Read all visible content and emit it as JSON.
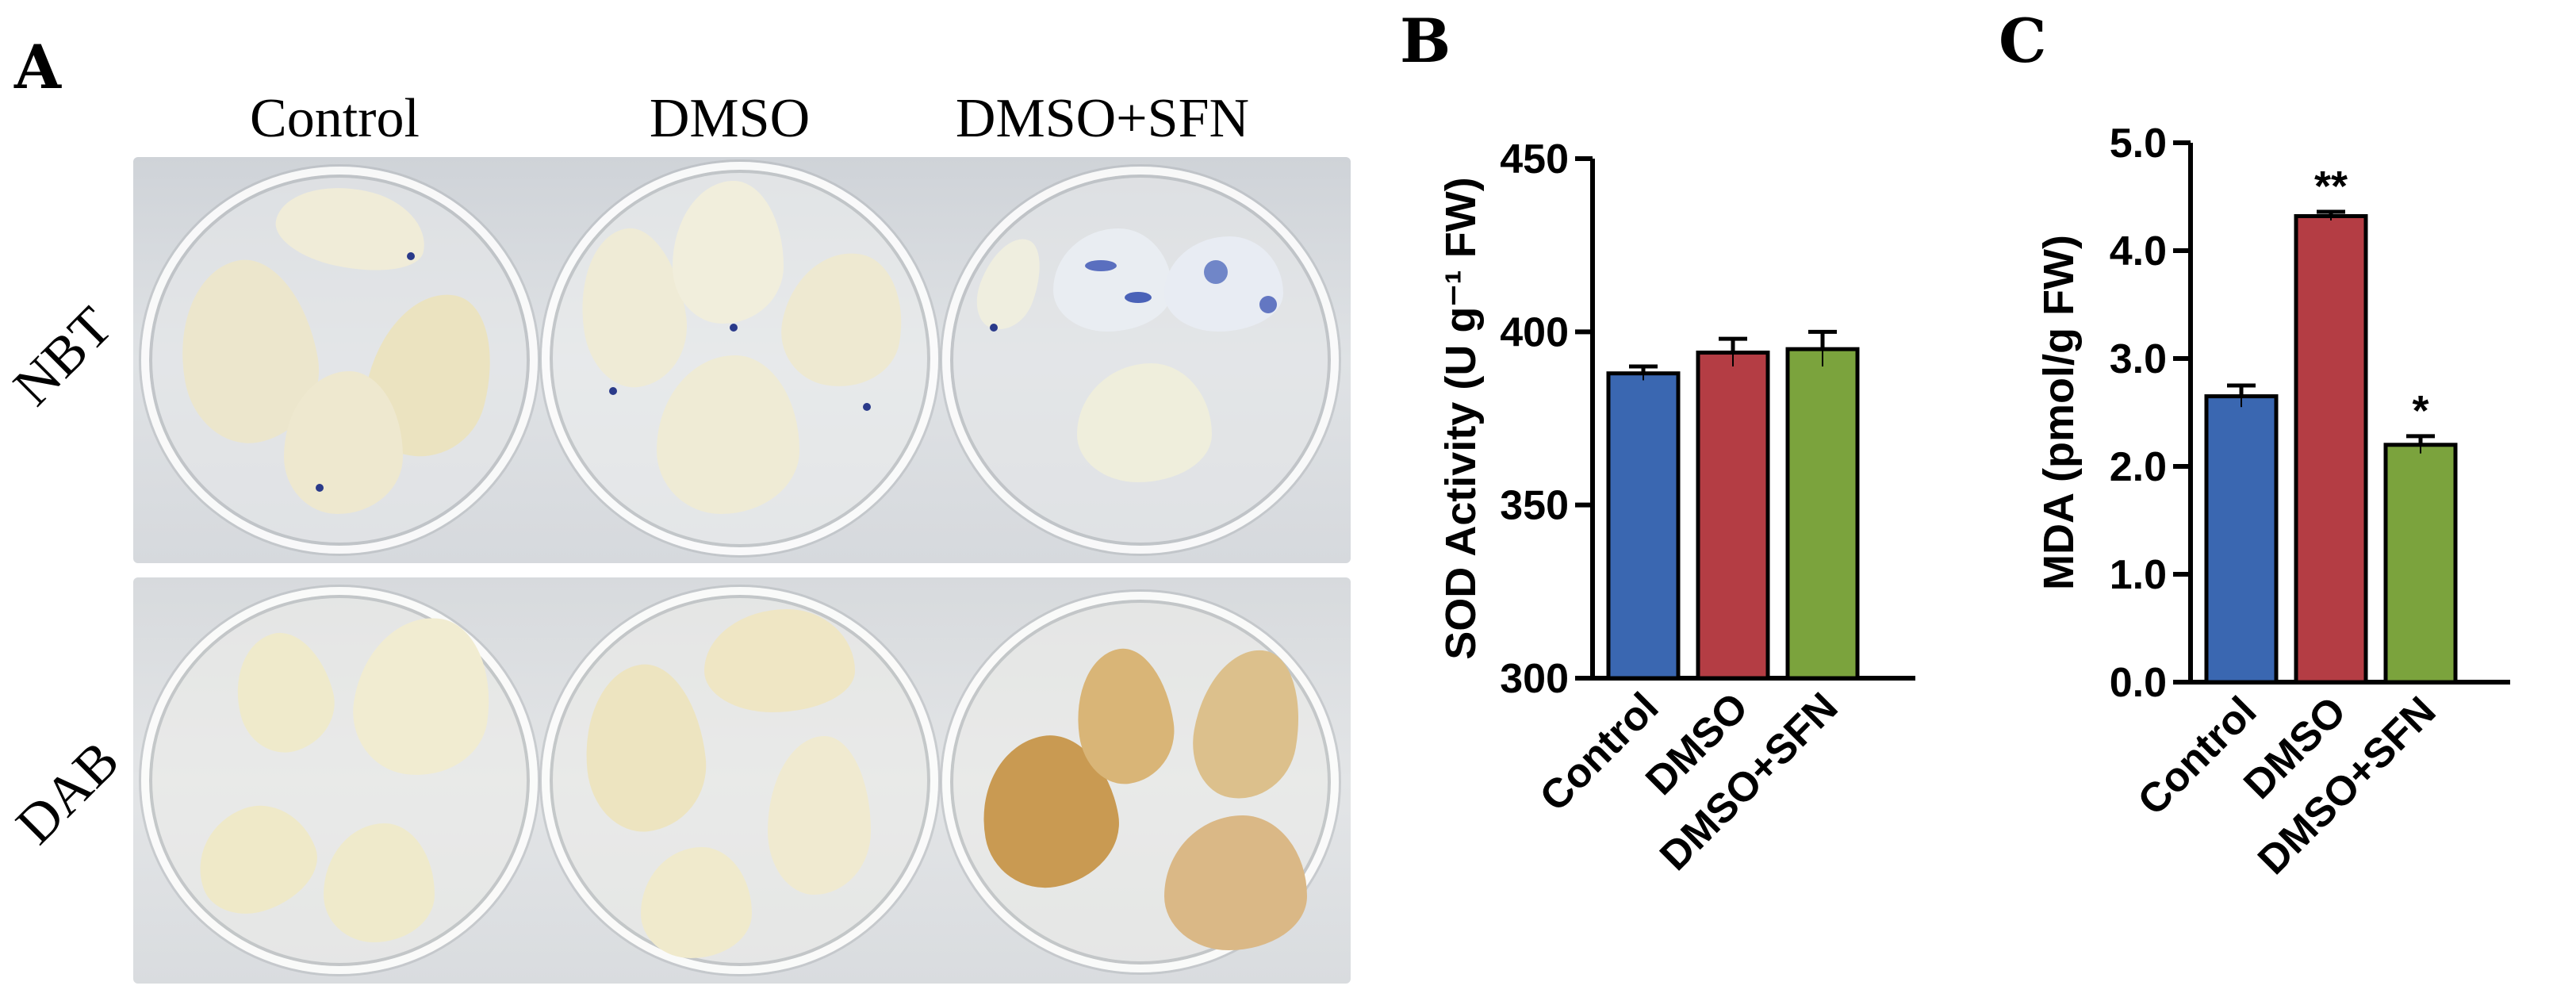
{
  "panel_a": {
    "letter": "A",
    "columns": [
      "Control",
      "DMSO",
      "DMSO+SFN"
    ],
    "rows": [
      "NBT",
      "DAB"
    ]
  },
  "chart_data": [
    {
      "panel": "B",
      "type": "bar",
      "categories": [
        "Control",
        "DMSO",
        "DMSO+SFN"
      ],
      "values": [
        388,
        394,
        395
      ],
      "errors": [
        2,
        4,
        5
      ],
      "ylabel": "SOD Activity (U g⁻¹ FW)",
      "xlabel": "",
      "ylim": [
        300,
        450
      ],
      "yticks": [
        300,
        350,
        400,
        450
      ],
      "ytick_labels": [
        "300",
        "350",
        "400",
        "450"
      ],
      "colors": [
        "#3a67b1",
        "#b43d44",
        "#7ba33d"
      ],
      "annotations": [
        "",
        "",
        ""
      ],
      "grid": false,
      "legend": "none"
    },
    {
      "panel": "C",
      "type": "bar",
      "categories": [
        "Control",
        "DMSO",
        "DMSO+SFN"
      ],
      "values": [
        2.65,
        4.32,
        2.2
      ],
      "errors": [
        0.1,
        0.04,
        0.08
      ],
      "ylabel": "MDA (pmol/g  FW)",
      "xlabel": "",
      "ylim": [
        0,
        5
      ],
      "yticks": [
        0,
        1,
        2,
        3,
        4,
        5
      ],
      "ytick_labels": [
        "0.0",
        "1.0",
        "2.0",
        "3.0",
        "4.0",
        "5.0"
      ],
      "colors": [
        "#3a67b1",
        "#b43d44",
        "#7ba33d"
      ],
      "annotations": [
        "",
        "**",
        "*"
      ],
      "grid": false,
      "legend": "none"
    }
  ]
}
